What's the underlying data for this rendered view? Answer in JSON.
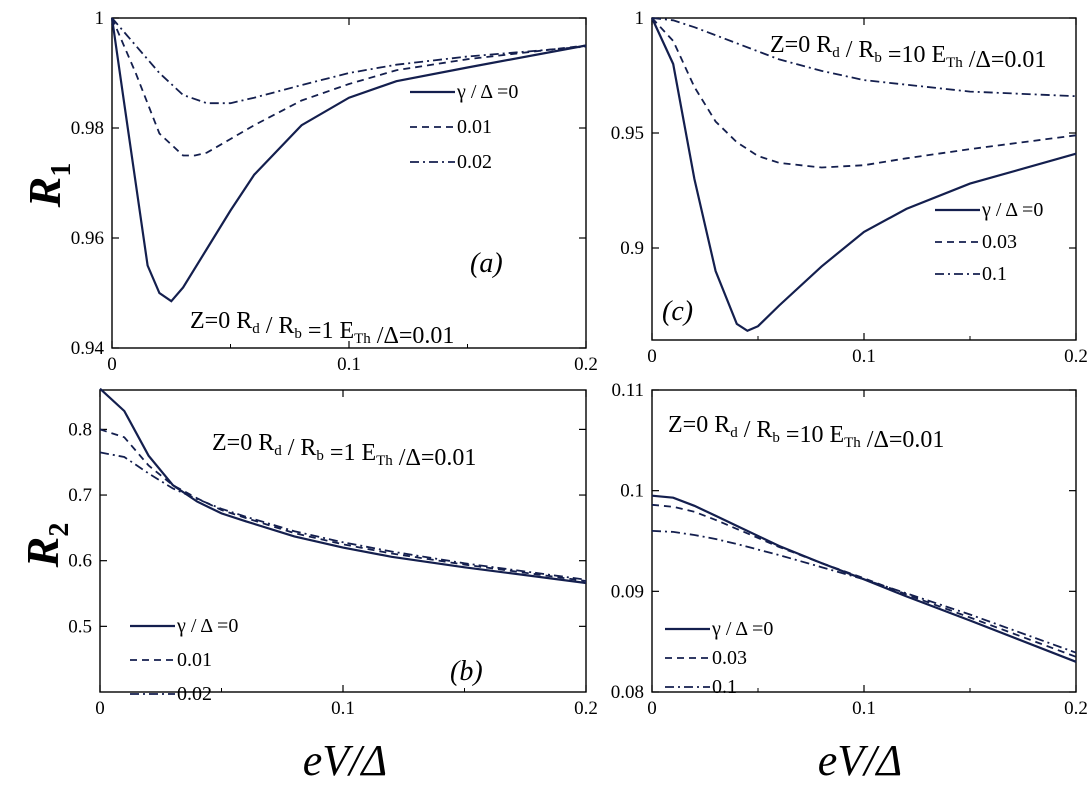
{
  "chart_data": [
    {
      "id": "a",
      "type": "line",
      "panel_label": "(a)",
      "annotation": "Z=0   R_d / R_b =1   E_Th /Δ=0.01",
      "ylabel": "R_1",
      "xlabel": "",
      "xlim": [
        0,
        0.2
      ],
      "ylim": [
        0.94,
        1.0
      ],
      "xticks": [
        "0",
        "0.1",
        "0.2"
      ],
      "yticks": [
        "0.94",
        "0.96",
        "0.98",
        "1"
      ],
      "legend_position": "upper-right",
      "series": [
        {
          "name": "γ / Δ =0",
          "style": "solid",
          "x": [
            0,
            0.005,
            0.01,
            0.015,
            0.02,
            0.025,
            0.03,
            0.04,
            0.05,
            0.06,
            0.08,
            0.1,
            0.12,
            0.15,
            0.2
          ],
          "y": [
            1.0,
            0.985,
            0.97,
            0.955,
            0.95,
            0.9485,
            0.951,
            0.958,
            0.965,
            0.9715,
            0.9805,
            0.9855,
            0.9885,
            0.991,
            0.995
          ]
        },
        {
          "name": "0.01",
          "style": "dashed",
          "x": [
            0,
            0.01,
            0.02,
            0.03,
            0.035,
            0.04,
            0.05,
            0.06,
            0.08,
            0.1,
            0.12,
            0.15,
            0.2
          ],
          "y": [
            1.0,
            0.99,
            0.979,
            0.975,
            0.975,
            0.9755,
            0.978,
            0.9805,
            0.985,
            0.988,
            0.9905,
            0.9925,
            0.995
          ]
        },
        {
          "name": "0.02",
          "style": "dashdot",
          "x": [
            0,
            0.01,
            0.02,
            0.03,
            0.04,
            0.05,
            0.06,
            0.08,
            0.1,
            0.12,
            0.15,
            0.2
          ],
          "y": [
            1.0,
            0.995,
            0.99,
            0.986,
            0.9845,
            0.9845,
            0.9855,
            0.9878,
            0.99,
            0.9915,
            0.993,
            0.9948
          ]
        }
      ]
    },
    {
      "id": "b",
      "type": "line",
      "panel_label": "(b)",
      "annotation": "Z=0   R_d / R_b =1   E_Th /Δ=0.01",
      "ylabel": "R_2",
      "xlabel": "eV/Δ",
      "xlim": [
        0,
        0.2
      ],
      "ylim": [
        0.4,
        0.86
      ],
      "xticks": [
        "0",
        "0.1",
        "0.2"
      ],
      "yticks": [
        "0.5",
        "0.6",
        "0.7",
        "0.8"
      ],
      "legend_position": "lower-left",
      "series": [
        {
          "name": "γ / Δ =0",
          "style": "solid",
          "x": [
            0,
            0.01,
            0.02,
            0.03,
            0.04,
            0.05,
            0.06,
            0.08,
            0.1,
            0.12,
            0.15,
            0.2
          ],
          "y": [
            0.862,
            0.828,
            0.76,
            0.715,
            0.69,
            0.672,
            0.66,
            0.637,
            0.62,
            0.606,
            0.59,
            0.566
          ]
        },
        {
          "name": "0.01",
          "style": "dashed",
          "x": [
            0,
            0.01,
            0.02,
            0.03,
            0.04,
            0.05,
            0.06,
            0.08,
            0.1,
            0.12,
            0.15,
            0.2
          ],
          "y": [
            0.8,
            0.788,
            0.745,
            0.715,
            0.695,
            0.677,
            0.665,
            0.642,
            0.625,
            0.611,
            0.594,
            0.569
          ]
        },
        {
          "name": "0.02",
          "style": "dashdot",
          "x": [
            0,
            0.01,
            0.02,
            0.03,
            0.04,
            0.05,
            0.06,
            0.08,
            0.1,
            0.12,
            0.15,
            0.2
          ],
          "y": [
            0.765,
            0.758,
            0.733,
            0.71,
            0.694,
            0.679,
            0.667,
            0.645,
            0.628,
            0.614,
            0.596,
            0.571
          ]
        }
      ]
    },
    {
      "id": "c",
      "type": "line",
      "panel_label": "(c)",
      "annotation": "Z=0   R_d / R_b =10   E_Th /Δ=0.01",
      "ylabel": "",
      "xlabel": "",
      "xlim": [
        0,
        0.2
      ],
      "ylim": [
        0.86,
        1.0
      ],
      "xticks": [
        "0",
        "0.1",
        "0.2"
      ],
      "yticks": [
        "0.9",
        "0.95",
        "1"
      ],
      "legend_position": "lower-right",
      "series": [
        {
          "name": "γ / Δ =0",
          "style": "solid",
          "x": [
            0,
            0.005,
            0.01,
            0.015,
            0.02,
            0.03,
            0.04,
            0.045,
            0.05,
            0.06,
            0.08,
            0.1,
            0.12,
            0.15,
            0.2
          ],
          "y": [
            1.0,
            0.99,
            0.98,
            0.955,
            0.93,
            0.89,
            0.867,
            0.864,
            0.866,
            0.875,
            0.892,
            0.907,
            0.917,
            0.928,
            0.941
          ]
        },
        {
          "name": "0.03",
          "style": "dashed",
          "x": [
            0,
            0.01,
            0.02,
            0.03,
            0.04,
            0.05,
            0.06,
            0.08,
            0.1,
            0.12,
            0.15,
            0.2
          ],
          "y": [
            1.0,
            0.99,
            0.97,
            0.955,
            0.946,
            0.94,
            0.937,
            0.935,
            0.936,
            0.939,
            0.943,
            0.949
          ]
        },
        {
          "name": "0.1",
          "style": "dashdot",
          "x": [
            0,
            0.01,
            0.02,
            0.04,
            0.06,
            0.08,
            0.1,
            0.12,
            0.15,
            0.2
          ],
          "y": [
            1.0,
            0.999,
            0.996,
            0.989,
            0.982,
            0.977,
            0.973,
            0.971,
            0.968,
            0.966
          ]
        }
      ]
    },
    {
      "id": "d",
      "type": "line",
      "panel_label": "(d)",
      "annotation": "Z=0   R_d / R_b =10   E_Th /Δ=0.01",
      "ylabel": "",
      "xlabel": "eV/Δ",
      "xlim": [
        0,
        0.2
      ],
      "ylim": [
        0.08,
        0.11
      ],
      "xticks": [
        "0",
        "0.1",
        "0.2"
      ],
      "yticks": [
        "0.08",
        "0.09",
        "0.1",
        "0.11"
      ],
      "legend_position": "lower-left",
      "series": [
        {
          "name": "γ / Δ =0",
          "style": "solid",
          "x": [
            0,
            0.01,
            0.02,
            0.03,
            0.04,
            0.06,
            0.08,
            0.1,
            0.12,
            0.15,
            0.2
          ],
          "y": [
            0.0995,
            0.0993,
            0.0985,
            0.0975,
            0.0965,
            0.0945,
            0.0928,
            0.0912,
            0.0895,
            0.0871,
            0.083
          ]
        },
        {
          "name": "0.03",
          "style": "dashed",
          "x": [
            0,
            0.01,
            0.02,
            0.03,
            0.04,
            0.06,
            0.08,
            0.1,
            0.12,
            0.15,
            0.2
          ],
          "y": [
            0.0986,
            0.0984,
            0.0979,
            0.0971,
            0.0962,
            0.0944,
            0.0928,
            0.0913,
            0.0897,
            0.0874,
            0.0835
          ]
        },
        {
          "name": "0.1",
          "style": "dashdot",
          "x": [
            0,
            0.01,
            0.02,
            0.03,
            0.04,
            0.06,
            0.08,
            0.1,
            0.12,
            0.15,
            0.2
          ],
          "y": [
            0.096,
            0.0959,
            0.0956,
            0.0952,
            0.0947,
            0.0936,
            0.0924,
            0.0912,
            0.0898,
            0.0877,
            0.0839
          ]
        }
      ]
    }
  ],
  "colors": {
    "line": "#141f4e",
    "axis": "#000000",
    "background": "#ffffff"
  }
}
